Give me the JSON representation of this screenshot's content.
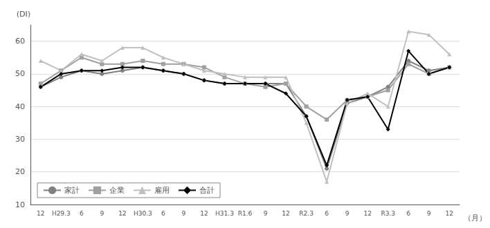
{
  "chart_data": {
    "type": "line",
    "xlabel": "（月）",
    "ylabel": "(DI)",
    "categories": [
      "12",
      "H29.3",
      "6",
      "9",
      "12",
      "H30.3",
      "6",
      "9",
      "12",
      "H31.3",
      "R1.6",
      "9",
      "12",
      "R2.3",
      "6",
      "9",
      "12",
      "R3.3",
      "6",
      "9",
      "12"
    ],
    "series": [
      {
        "name": "家計",
        "color": "#808080",
        "marker": "circle",
        "values": [
          46,
          49,
          51,
          50,
          51,
          52,
          51,
          50,
          48,
          47,
          47,
          47,
          47,
          37,
          21,
          41,
          43,
          46,
          54,
          51,
          52
        ]
      },
      {
        "name": "企業",
        "color": "#a0a0a0",
        "marker": "square",
        "values": [
          47,
          51,
          55,
          53,
          53,
          54,
          53,
          53,
          52,
          49,
          47,
          46,
          47,
          40,
          36,
          42,
          43,
          45,
          53,
          50,
          52
        ]
      },
      {
        "name": "雇用",
        "color": "#c0c0c0",
        "marker": "triangle",
        "values": [
          54,
          51,
          56,
          54,
          58,
          58,
          55,
          53,
          51,
          50,
          49,
          49,
          49,
          35,
          17,
          41,
          44,
          40,
          63,
          62,
          56
        ]
      },
      {
        "name": "合計",
        "color": "#000000",
        "marker": "diamond",
        "values": [
          46,
          50,
          51,
          51,
          52,
          52,
          51,
          50,
          48,
          47,
          47,
          47,
          44,
          37,
          22,
          42,
          43,
          33,
          57,
          50,
          52
        ]
      }
    ],
    "ylim": [
      10,
      65
    ],
    "yticks": [
      10,
      20,
      30,
      40,
      50,
      60
    ],
    "grid": true,
    "legend": "lower left"
  }
}
